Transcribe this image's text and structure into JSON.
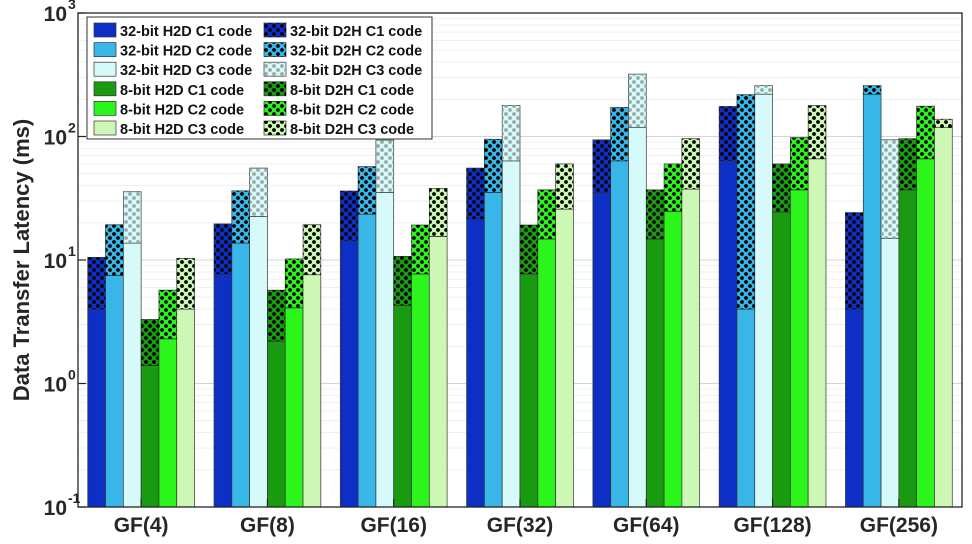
{
  "chart_data": {
    "type": "bar",
    "title": "",
    "xlabel": "",
    "ylabel": "Data Transfer Latency (ms)",
    "yscale": "log",
    "ylim": [
      0.1,
      1000
    ],
    "y_ticks": [
      {
        "value": 0.1,
        "base": "10",
        "exp": "-1"
      },
      {
        "value": 1,
        "base": "10",
        "exp": "0"
      },
      {
        "value": 10,
        "base": "10",
        "exp": "1"
      },
      {
        "value": 100,
        "base": "10",
        "exp": "2"
      },
      {
        "value": 1000,
        "base": "10",
        "exp": "3"
      }
    ],
    "grid": true,
    "legend_position": "top-left",
    "categories": [
      "GF(4)",
      "GF(8)",
      "GF(16)",
      "GF(32)",
      "GF(64)",
      "GF(128)",
      "GF(256)"
    ],
    "series": [
      {
        "name": "32-bit C1 code",
        "h2d_label": "32-bit H2D C1 code",
        "d2h_label": "32-bit D2H C1 code",
        "color": "#0d2fc6",
        "h2d": [
          4.0,
          7.7,
          14.3,
          21.5,
          35.2,
          63.5,
          4.0
        ],
        "total": [
          10.5,
          19.6,
          36.2,
          55.5,
          94.0,
          175.0,
          24.2
        ]
      },
      {
        "name": "32-bit C2 code",
        "h2d_label": "32-bit H2D C2 code",
        "d2h_label": "32-bit D2H C2 code",
        "color": "#38b6e8",
        "h2d": [
          7.5,
          13.7,
          23.5,
          35.2,
          63.5,
          4.0,
          220.0
        ],
        "total": [
          19.3,
          36.3,
          57.0,
          95.0,
          172.0,
          218.0,
          258.0
        ]
      },
      {
        "name": "32-bit C3 code",
        "h2d_label": "32-bit H2D C3 code",
        "d2h_label": "32-bit D2H C3 code",
        "color": "#d6fafa",
        "h2d": [
          13.7,
          22.5,
          35.2,
          63.5,
          118.0,
          220.0,
          15.0
        ],
        "total": [
          35.7,
          55.5,
          93.5,
          178.0,
          320.0,
          258.0,
          94.0
        ]
      },
      {
        "name": "8-bit C1 code",
        "h2d_label": "8-bit H2D C1 code",
        "d2h_label": "8-bit D2H C1 code",
        "color": "#1a9a10",
        "h2d": [
          1.4,
          2.2,
          4.3,
          7.7,
          14.8,
          24.5,
          37.0
        ],
        "total": [
          3.3,
          5.7,
          10.7,
          19.2,
          37.0,
          60.0,
          96.0
        ]
      },
      {
        "name": "8-bit C2 code",
        "h2d_label": "8-bit H2D C2 code",
        "d2h_label": "8-bit D2H C2 code",
        "color": "#2bf51a",
        "h2d": [
          2.3,
          4.1,
          7.7,
          14.8,
          24.8,
          37.0,
          66.0
        ],
        "total": [
          5.7,
          10.2,
          19.2,
          37.0,
          60.0,
          98.0,
          176.0
        ]
      },
      {
        "name": "8-bit C3 code",
        "h2d_label": "8-bit H2D C3 code",
        "d2h_label": "8-bit D2H C3 code",
        "color": "#cdf7b4",
        "h2d": [
          4.0,
          7.6,
          15.5,
          25.8,
          37.5,
          66.0,
          118.0
        ],
        "total": [
          10.3,
          19.3,
          38.0,
          60.0,
          96.0,
          178.0,
          138.0
        ]
      }
    ]
  }
}
